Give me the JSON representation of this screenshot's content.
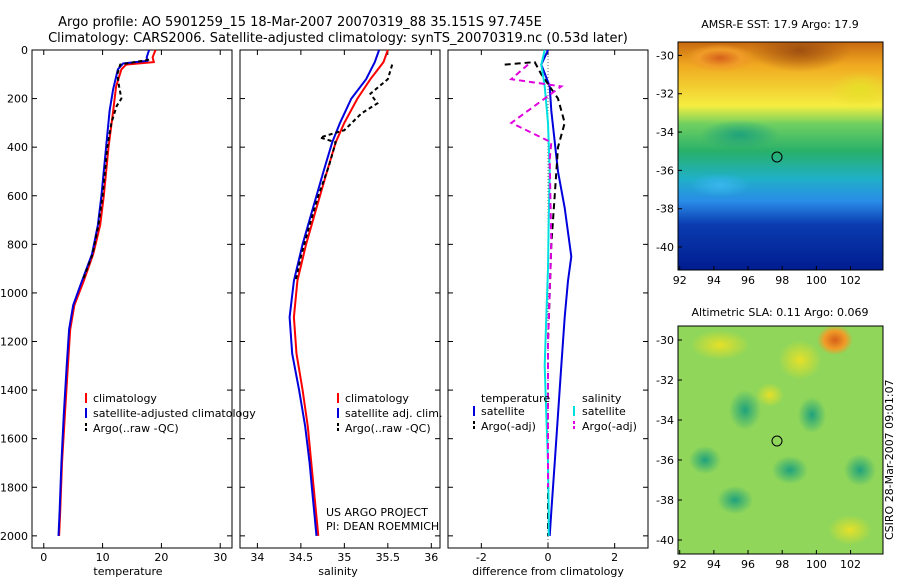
{
  "title_line1": "Argo profile: AO 5901259_15 18-Mar-2007 20070319_88 35.151S 97.745E",
  "title_line2": "Climatology: CARS2006. Satellite-adjusted climatology: synTS_20070319.nc (0.53d later)",
  "credit": "US ARGO PROJECT",
  "pi": "PI: DEAN ROEMMICH",
  "timestamp": "CSIRO 28-Mar-2007 09:01:07",
  "colors": {
    "climatology": "#ff0000",
    "satellite": "#0000dd",
    "argo": "#000000",
    "cyan": "#00e0e0",
    "magenta": "#e000e0"
  },
  "chart_data": [
    {
      "type": "line",
      "id": "temperature",
      "xlabel": "temperature",
      "xlim": [
        -2,
        32
      ],
      "ylim": [
        0,
        2050
      ],
      "xticks": [
        0,
        10,
        20,
        30
      ],
      "yticks": [
        0,
        200,
        400,
        600,
        800,
        1000,
        1200,
        1400,
        1600,
        1800,
        2000
      ],
      "legend": [
        "climatology",
        "satellite-adjusted climatology",
        "Argo(..raw -QC)"
      ],
      "series": [
        {
          "name": "climatology",
          "color": "#ff0000",
          "dash": "",
          "points": [
            [
              19,
              0
            ],
            [
              18.5,
              30
            ],
            [
              18.7,
              50
            ],
            [
              14,
              60
            ],
            [
              13.2,
              80
            ],
            [
              12.3,
              150
            ],
            [
              11.8,
              250
            ],
            [
              11,
              400
            ],
            [
              10.2,
              600
            ],
            [
              9.6,
              720
            ],
            [
              8.4,
              840
            ],
            [
              6.8,
              950
            ],
            [
              5.2,
              1050
            ],
            [
              4.5,
              1150
            ],
            [
              4.1,
              1300
            ],
            [
              3.6,
              1500
            ],
            [
              3.1,
              1700
            ],
            [
              2.8,
              1900
            ],
            [
              2.6,
              2000
            ]
          ]
        },
        {
          "name": "satellite-adjusted climatology",
          "color": "#0000dd",
          "dash": "",
          "points": [
            [
              17.9,
              0
            ],
            [
              17.5,
              30
            ],
            [
              17.6,
              45
            ],
            [
              13.5,
              55
            ],
            [
              12.6,
              80
            ],
            [
              11.8,
              160
            ],
            [
              11.2,
              250
            ],
            [
              10.6,
              400
            ],
            [
              9.8,
              600
            ],
            [
              9.2,
              720
            ],
            [
              8.2,
              840
            ],
            [
              6.5,
              950
            ],
            [
              5,
              1050
            ],
            [
              4.3,
              1150
            ],
            [
              3.9,
              1300
            ],
            [
              3.4,
              1500
            ],
            [
              3,
              1700
            ],
            [
              2.7,
              1900
            ],
            [
              2.5,
              2000
            ]
          ]
        },
        {
          "name": "Argo(..raw -QC)",
          "color": "#000000",
          "dash": "4,3",
          "points": [
            [
              17.9,
              40
            ],
            [
              13,
              60
            ],
            [
              12.5,
              100
            ],
            [
              12.8,
              150
            ],
            [
              13.2,
              200
            ],
            [
              12.4,
              230
            ],
            [
              11.5,
              300
            ],
            [
              10.8,
              400
            ],
            [
              10,
              600
            ],
            [
              9.3,
              720
            ],
            [
              8.3,
              840
            ],
            [
              6.6,
              950
            ]
          ]
        }
      ]
    },
    {
      "type": "line",
      "id": "salinity",
      "xlabel": "salinity",
      "xlim": [
        33.8,
        36.1
      ],
      "ylim": [
        0,
        2050
      ],
      "xticks": [
        34,
        34.5,
        35,
        35.5,
        36
      ],
      "xticklabels": [
        "34",
        "34.5",
        "35",
        "35.5",
        "36"
      ],
      "yticks": [
        0,
        200,
        400,
        600,
        800,
        1000,
        1200,
        1400,
        1600,
        1800,
        2000
      ],
      "legend": [
        "climatology",
        "satellite adj. clim.",
        "Argo(..raw -QC)"
      ],
      "series": [
        {
          "name": "climatology",
          "color": "#ff0000",
          "dash": "",
          "points": [
            [
              35.5,
              0
            ],
            [
              35.45,
              50
            ],
            [
              35.3,
              120
            ],
            [
              35.15,
              200
            ],
            [
              35,
              300
            ],
            [
              34.9,
              380
            ],
            [
              34.8,
              500
            ],
            [
              34.68,
              650
            ],
            [
              34.56,
              800
            ],
            [
              34.46,
              950
            ],
            [
              34.42,
              1100
            ],
            [
              34.45,
              1250
            ],
            [
              34.52,
              1400
            ],
            [
              34.58,
              1550
            ],
            [
              34.62,
              1700
            ],
            [
              34.66,
              1850
            ],
            [
              34.7,
              2000
            ]
          ]
        },
        {
          "name": "satellite adj. clim.",
          "color": "#0000dd",
          "dash": "",
          "points": [
            [
              35.4,
              0
            ],
            [
              35.35,
              50
            ],
            [
              35.25,
              120
            ],
            [
              35.08,
              200
            ],
            [
              34.95,
              300
            ],
            [
              34.86,
              380
            ],
            [
              34.76,
              500
            ],
            [
              34.64,
              650
            ],
            [
              34.52,
              800
            ],
            [
              34.42,
              950
            ],
            [
              34.37,
              1100
            ],
            [
              34.4,
              1250
            ],
            [
              34.48,
              1400
            ],
            [
              34.55,
              1550
            ],
            [
              34.6,
              1700
            ],
            [
              34.64,
              1850
            ],
            [
              34.68,
              2000
            ]
          ]
        },
        {
          "name": "Argo(..raw -QC)",
          "color": "#000000",
          "dash": "4,3",
          "points": [
            [
              35.55,
              60
            ],
            [
              35.5,
              120
            ],
            [
              35.3,
              180
            ],
            [
              35.38,
              220
            ],
            [
              35.2,
              260
            ],
            [
              35.0,
              330
            ],
            [
              34.72,
              360
            ],
            [
              34.9,
              380
            ],
            [
              34.82,
              480
            ],
            [
              34.7,
              600
            ],
            [
              34.6,
              720
            ],
            [
              34.5,
              850
            ],
            [
              34.44,
              950
            ]
          ]
        }
      ]
    },
    {
      "type": "line",
      "id": "difference",
      "xlabel": "difference from climatology",
      "xlim": [
        -3,
        3
      ],
      "ylim": [
        0,
        2050
      ],
      "xticks": [
        -2,
        0,
        2
      ],
      "yticks": [
        0,
        200,
        400,
        600,
        800,
        1000,
        1200,
        1400,
        1600,
        1800,
        2000
      ],
      "legend": [
        "temperature",
        "satellite",
        "Argo(-adj)",
        "salinity",
        "satellite",
        "Argo(-adj)"
      ],
      "series": [
        {
          "name": "temperature satellite",
          "color": "#0000dd",
          "dash": "",
          "points": [
            [
              0,
              0
            ],
            [
              -0.2,
              60
            ],
            [
              0.05,
              150
            ],
            [
              0.1,
              250
            ],
            [
              0.3,
              500
            ],
            [
              0.5,
              650
            ],
            [
              0.6,
              750
            ],
            [
              0.7,
              850
            ],
            [
              0.6,
              950
            ],
            [
              0.5,
              1100
            ],
            [
              0.4,
              1300
            ],
            [
              0.3,
              1500
            ],
            [
              0.2,
              1700
            ],
            [
              0.1,
              1900
            ],
            [
              0.05,
              2000
            ]
          ]
        },
        {
          "name": "temperature Argo(-adj)",
          "color": "#000000",
          "dash": "6,4",
          "points": [
            [
              -1.3,
              60
            ],
            [
              -0.4,
              50
            ],
            [
              -0.2,
              100
            ],
            [
              0.3,
              200
            ],
            [
              0.5,
              300
            ],
            [
              0.3,
              400
            ],
            [
              0.2,
              600
            ],
            [
              0.1,
              800
            ],
            [
              0.05,
              1000
            ],
            [
              0,
              1200
            ],
            [
              0,
              1400
            ],
            [
              0,
              1700
            ],
            [
              0,
              1900
            ],
            [
              0,
              2000
            ]
          ]
        },
        {
          "name": "salinity satellite",
          "color": "#00e0e0",
          "dash": "",
          "points": [
            [
              -0.1,
              0
            ],
            [
              -0.2,
              60
            ],
            [
              -0.1,
              150
            ],
            [
              0,
              300
            ],
            [
              0.05,
              500
            ],
            [
              0.02,
              700
            ],
            [
              0,
              900
            ],
            [
              -0.05,
              1100
            ],
            [
              -0.1,
              1300
            ],
            [
              -0.05,
              1500
            ],
            [
              0,
              1700
            ],
            [
              0.02,
              1900
            ],
            [
              0.02,
              2000
            ]
          ]
        },
        {
          "name": "salinity Argo(-adj)",
          "color": "#e000e0",
          "dash": "6,4",
          "points": [
            [
              -0.6,
              60
            ],
            [
              -1.1,
              120
            ],
            [
              0.4,
              150
            ],
            [
              -1.1,
              300
            ],
            [
              0.1,
              380
            ],
            [
              0.05,
              450
            ],
            [
              0.1,
              800
            ],
            [
              0,
              1200
            ],
            [
              0,
              1800
            ]
          ]
        }
      ]
    },
    {
      "type": "heatmap",
      "id": "sst",
      "title": "AMSR-E SST: 17.9 Argo: 17.9",
      "xlim": [
        91.9,
        103.9
      ],
      "ylim": [
        -41.2,
        -29.3
      ],
      "xticks": [
        92,
        94,
        96,
        98,
        100,
        102
      ],
      "yticks": [
        -30,
        -32,
        -34,
        -36,
        -38,
        -40
      ],
      "marker": [
        97.745,
        -35.151
      ]
    },
    {
      "type": "heatmap",
      "id": "sla",
      "title": "Altimetric SLA: 0.11 Argo: 0.069",
      "xlim": [
        91.9,
        103.9
      ],
      "ylim": [
        -40.7,
        -29.3
      ],
      "xticks": [
        92,
        94,
        96,
        98,
        100,
        102
      ],
      "yticks": [
        -30,
        -32,
        -34,
        -36,
        -38,
        -40
      ],
      "marker": [
        97.745,
        -35.151
      ]
    }
  ]
}
